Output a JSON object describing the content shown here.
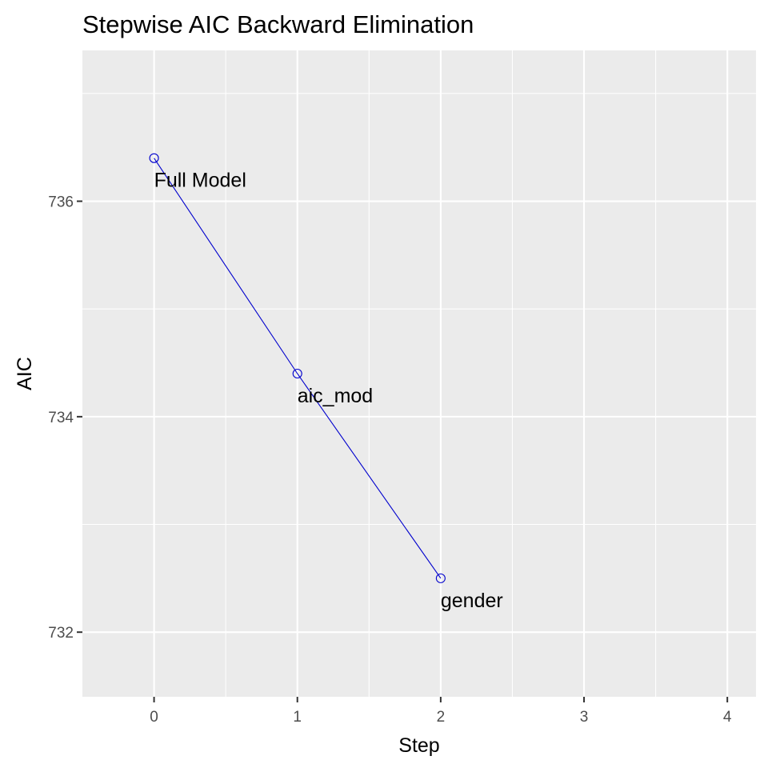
{
  "chart_data": {
    "type": "line",
    "title": "Stepwise AIC Backward Elimination",
    "xlabel": "Step",
    "ylabel": "AIC",
    "xlim": [
      -0.5,
      4.2
    ],
    "ylim": [
      731.4,
      737.4
    ],
    "x_ticks": [
      0,
      1,
      2,
      3,
      4
    ],
    "y_ticks": [
      732,
      734,
      736
    ],
    "x_tick_labels": [
      "0",
      "1",
      "2",
      "3",
      "4"
    ],
    "y_tick_labels": [
      "732",
      "734",
      "736"
    ],
    "grid": true,
    "line_color": "#0000cd",
    "panel_background": "#ebebeb",
    "series": [
      {
        "x": [
          0,
          1,
          2
        ],
        "y": [
          736.4,
          734.4,
          732.5
        ],
        "labels": [
          "Full Model",
          "aic_mod",
          "gender"
        ]
      }
    ]
  }
}
